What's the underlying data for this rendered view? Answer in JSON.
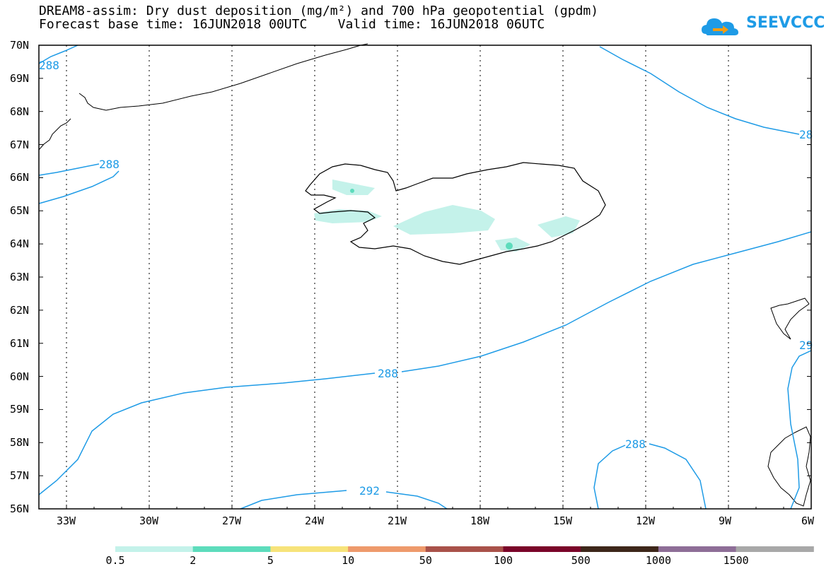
{
  "title": {
    "line1": "DREAM8-assim: Dry dust deposition (mg/m²) and 700 hPa geopotential (gpdm)",
    "line2": "Forecast base time: 16JUN2018 00UTC    Valid time: 16JUN2018 06UTC"
  },
  "logo": {
    "text": "SEEVCCC",
    "icon": "cloud-logo-icon",
    "color": "#1e9be6"
  },
  "map": {
    "lat_labels": [
      "70N",
      "69N",
      "68N",
      "67N",
      "66N",
      "65N",
      "64N",
      "63N",
      "62N",
      "61N",
      "60N",
      "59N",
      "58N",
      "57N",
      "56N"
    ],
    "lon_labels": [
      "33W",
      "30W",
      "27W",
      "24W",
      "21W",
      "18W",
      "15W",
      "12W",
      "9W",
      "6W"
    ],
    "contour_color": "#1e9be6",
    "contour_labels": [
      "288",
      "288",
      "288",
      "292",
      "288",
      "28",
      "29"
    ]
  },
  "colorbar": {
    "labels": [
      "0.5",
      "2",
      "5",
      "10",
      "50",
      "100",
      "500",
      "1000",
      "1500"
    ],
    "colors": [
      "#c4f2ea",
      "#5ddcbc",
      "#f7e37a",
      "#ee9a6c",
      "#a9524a",
      "#7a0529",
      "#3d271a",
      "#8e6e97",
      "#a8a8a8"
    ]
  }
}
